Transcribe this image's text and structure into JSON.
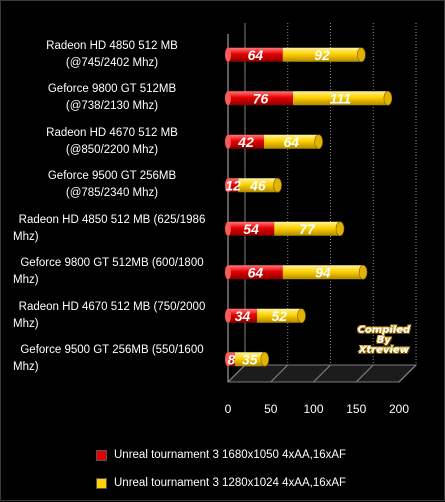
{
  "chart_data": {
    "type": "bar",
    "orientation": "horizontal",
    "stacked": true,
    "categories": [
      [
        "Radeon HD 4850 512 MB",
        "(@745/2402 Mhz)"
      ],
      [
        "Geforce 9800 GT 512MB",
        "(@738/2130 Mhz)"
      ],
      [
        "Radeon HD 4670 512 MB",
        "(@850/2200 Mhz)"
      ],
      [
        "Geforce 9500 GT 256MB",
        "(@785/2340 Mhz)"
      ],
      [
        "Radeon HD  4850 512 MB  (625/1986",
        "Mhz)"
      ],
      [
        "Geforce 9800 GT 512MB  (600/1800",
        "Mhz)"
      ],
      [
        "Radeon HD 4670 512 MB  (750/2000",
        "Mhz)"
      ],
      [
        "Geforce 9500 GT 256MB  (550/1600",
        "Mhz)"
      ]
    ],
    "series": [
      {
        "name": "Unreal tournament  3 1680x1050 4xAA,16xAF",
        "color": "#e00000",
        "values": [
          64,
          76,
          42,
          12,
          54,
          64,
          34,
          8
        ]
      },
      {
        "name": "Unreal tournament  3 1280x1024 4xAA,16xAF",
        "color": "#ffd200",
        "values": [
          92,
          111,
          64,
          46,
          77,
          94,
          52,
          35
        ]
      }
    ],
    "xlim": [
      0,
      200
    ],
    "xticks": [
      "0",
      "50",
      "100",
      "150",
      "200"
    ],
    "grid": true,
    "legend": "bottom"
  },
  "watermark": [
    "Compiled",
    "By",
    "Xtreview"
  ]
}
